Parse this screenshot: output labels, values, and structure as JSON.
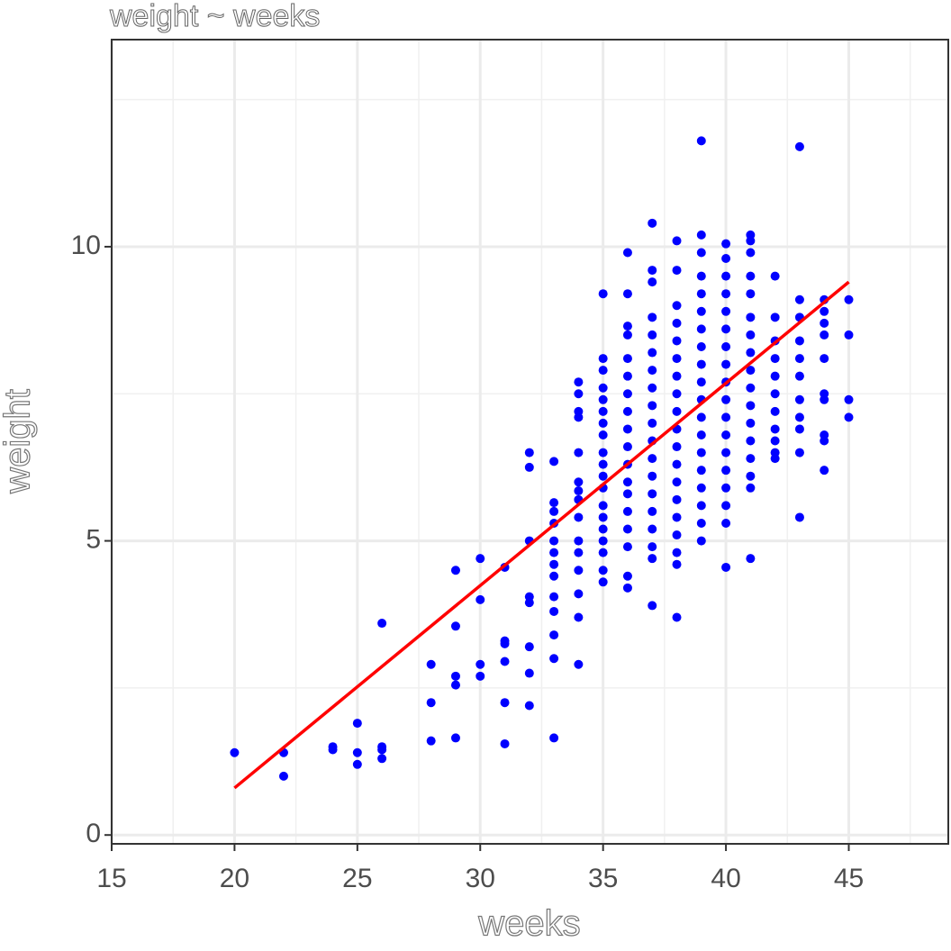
{
  "chart_data": {
    "type": "scatter",
    "title": "weight ~ weeks",
    "x_label": "weeks",
    "y_label": "weight",
    "xlim": [
      15,
      49.05
    ],
    "ylim": [
      -0.15,
      13.52
    ],
    "xticks": [
      15,
      20,
      25,
      30,
      35,
      40,
      45
    ],
    "yticks": [
      0,
      5,
      10
    ],
    "x_minor_grid": [
      17.5,
      22.5,
      27.5,
      32.5,
      37.5,
      42.5,
      47.5
    ],
    "y_minor_grid": [
      2.5,
      7.5,
      12.5
    ],
    "grid": true,
    "points": {
      "color": "#0000ff",
      "x": [
        20,
        22,
        22,
        24,
        24,
        25,
        25,
        25,
        26,
        26,
        26,
        26,
        28,
        28,
        28,
        29,
        29,
        29,
        29,
        29,
        30,
        30,
        30,
        30,
        31,
        31,
        31,
        31,
        31,
        31,
        32,
        32,
        32,
        32,
        32,
        32,
        32,
        32,
        33,
        33,
        33,
        33,
        33,
        33,
        33,
        33,
        33,
        33,
        33,
        33,
        33,
        34,
        34,
        34,
        34,
        34,
        34,
        34,
        34,
        34,
        34,
        34,
        34,
        34,
        34,
        34,
        35,
        35,
        35,
        35,
        35,
        35,
        35,
        35,
        35,
        35,
        35,
        35,
        35,
        35,
        35,
        35,
        35,
        35,
        35,
        36,
        36,
        36,
        36,
        36,
        36,
        36,
        36,
        36,
        36,
        36,
        36,
        36,
        36,
        36,
        36,
        36,
        36,
        37,
        37,
        37,
        37,
        37,
        37,
        37,
        37,
        37,
        37,
        37,
        37,
        37,
        37,
        37,
        37,
        37,
        37,
        37,
        38,
        38,
        38,
        38,
        38,
        38,
        38,
        38,
        38,
        38,
        38,
        38,
        38,
        38,
        38,
        38,
        38,
        38,
        38,
        39,
        39,
        39,
        39,
        39,
        39,
        39,
        39,
        39,
        39,
        39,
        39,
        39,
        39,
        39,
        39,
        39,
        39,
        39,
        40,
        40,
        40,
        40,
        40,
        40,
        40,
        40,
        40,
        40,
        40,
        40,
        40,
        40,
        40,
        40,
        40,
        40,
        41,
        41,
        41,
        41,
        41,
        41,
        41,
        41,
        41,
        41,
        41,
        41,
        41,
        41,
        41,
        41,
        41,
        42,
        42,
        42,
        42,
        42,
        42,
        42,
        42,
        42,
        42,
        42,
        43,
        43,
        43,
        43,
        43,
        43,
        43,
        43,
        43,
        43,
        43,
        44,
        44,
        44,
        44,
        44,
        44,
        44,
        44,
        44,
        44,
        45,
        45,
        45,
        45
      ],
      "y": [
        1.4,
        1.4,
        1.0,
        1.5,
        1.45,
        1.9,
        1.4,
        1.2,
        3.6,
        1.5,
        1.3,
        1.45,
        2.9,
        2.25,
        1.6,
        4.5,
        3.55,
        2.7,
        2.55,
        1.65,
        4.7,
        4.0,
        2.9,
        2.7,
        4.55,
        3.3,
        3.25,
        2.95,
        2.25,
        1.55,
        6.5,
        6.25,
        5.0,
        4.05,
        3.95,
        3.2,
        2.75,
        2.2,
        6.35,
        5.65,
        5.5,
        5.3,
        5.0,
        4.8,
        4.6,
        4.4,
        4.05,
        3.8,
        3.4,
        3.0,
        1.65,
        7.7,
        7.5,
        7.2,
        7.1,
        6.5,
        6.0,
        5.85,
        5.7,
        5.4,
        5.0,
        4.8,
        4.5,
        4.1,
        3.7,
        2.9,
        9.2,
        8.1,
        7.9,
        7.6,
        7.4,
        7.2,
        7.0,
        6.8,
        6.5,
        6.3,
        6.1,
        5.9,
        5.6,
        5.4,
        5.2,
        5.0,
        4.8,
        4.5,
        4.3,
        9.9,
        9.2,
        8.65,
        8.5,
        8.1,
        7.8,
        7.5,
        7.2,
        6.9,
        6.6,
        6.3,
        6.0,
        5.8,
        5.5,
        5.2,
        4.9,
        4.4,
        4.2,
        10.4,
        9.6,
        9.4,
        8.8,
        8.5,
        8.2,
        7.9,
        7.6,
        7.3,
        7.0,
        6.7,
        6.4,
        6.1,
        5.8,
        5.5,
        5.2,
        4.9,
        4.7,
        3.9,
        10.1,
        9.6,
        9.0,
        8.7,
        8.4,
        8.1,
        7.8,
        7.5,
        7.2,
        6.9,
        6.6,
        6.3,
        6.0,
        5.7,
        5.4,
        5.1,
        4.8,
        4.6,
        3.7,
        11.8,
        10.2,
        9.9,
        9.5,
        9.2,
        8.9,
        8.6,
        8.3,
        8.0,
        7.7,
        7.4,
        7.1,
        6.8,
        6.5,
        6.2,
        5.9,
        5.6,
        5.3,
        5.0,
        10.05,
        9.8,
        9.5,
        9.2,
        8.9,
        8.6,
        8.3,
        8.0,
        7.7,
        7.4,
        7.1,
        6.8,
        6.5,
        6.2,
        5.9,
        5.6,
        5.3,
        4.55,
        10.2,
        10.1,
        9.9,
        9.5,
        9.2,
        8.8,
        8.5,
        8.2,
        7.9,
        7.6,
        7.3,
        7.0,
        6.7,
        6.4,
        6.1,
        5.9,
        4.7,
        9.5,
        8.8,
        8.4,
        8.1,
        7.8,
        7.5,
        7.2,
        6.9,
        6.7,
        6.5,
        6.4,
        11.7,
        9.1,
        8.8,
        8.4,
        8.1,
        7.8,
        7.4,
        7.1,
        6.9,
        6.5,
        5.4,
        9.1,
        8.9,
        8.7,
        8.5,
        8.1,
        7.5,
        7.4,
        6.8,
        6.7,
        6.2,
        9.1,
        8.5,
        7.4,
        7.1
      ]
    },
    "fit_line": {
      "color": "#ff0000",
      "x": [
        20,
        45
      ],
      "y": [
        0.8,
        9.4
      ]
    }
  }
}
